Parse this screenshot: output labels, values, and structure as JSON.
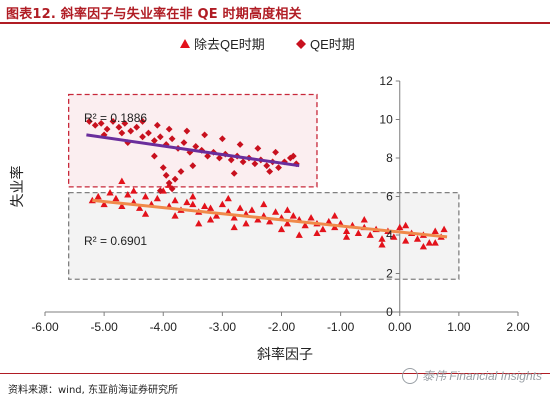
{
  "figure": {
    "title": "图表12.  斜率因子与失业率在非 QE 时期高度相关",
    "source": "资料来源：wind, 东亚前海证券研究所",
    "watermark": "泰伟 Financial Insights",
    "title_color": "#b01c24"
  },
  "chart_data": {
    "type": "scatter",
    "xlabel": "斜率因子",
    "ylabel": "失业率",
    "xlim": [
      -6,
      2
    ],
    "ylim": [
      0,
      12
    ],
    "x_ticks": [
      "-6.00",
      "-5.00",
      "-4.00",
      "-3.00",
      "-2.00",
      "-1.00",
      "0.00",
      "1.00",
      "2.00"
    ],
    "y_ticks": [
      "0",
      "2",
      "4",
      "6",
      "8",
      "10",
      "12"
    ],
    "legend_position": "top",
    "grid": false,
    "series": [
      {
        "name": "除去QE时期",
        "marker": "triangle",
        "color": "#e3121b",
        "trend": {
          "from": [
            -5.2,
            5.8
          ],
          "to": [
            0.8,
            3.9
          ],
          "color": "#f08a4b"
        },
        "annotation": "R² = 0.6901",
        "points": [
          [
            -5.2,
            5.8
          ],
          [
            -5.1,
            6.0
          ],
          [
            -5.0,
            5.6
          ],
          [
            -4.9,
            6.2
          ],
          [
            -4.8,
            5.9
          ],
          [
            -4.7,
            5.5
          ],
          [
            -4.6,
            6.1
          ],
          [
            -4.5,
            5.7
          ],
          [
            -4.4,
            5.4
          ],
          [
            -4.3,
            6.0
          ],
          [
            -4.2,
            5.6
          ],
          [
            -4.1,
            5.9
          ],
          [
            -4.0,
            6.3
          ],
          [
            -3.9,
            5.5
          ],
          [
            -3.8,
            5.8
          ],
          [
            -3.7,
            5.3
          ],
          [
            -3.6,
            5.7
          ],
          [
            -3.5,
            5.6
          ],
          [
            -3.4,
            5.2
          ],
          [
            -3.3,
            5.5
          ],
          [
            -3.2,
            5.4
          ],
          [
            -3.1,
            5.0
          ],
          [
            -3.0,
            5.6
          ],
          [
            -2.9,
            5.2
          ],
          [
            -2.8,
            4.9
          ],
          [
            -2.7,
            5.4
          ],
          [
            -2.6,
            5.1
          ],
          [
            -2.5,
            5.3
          ],
          [
            -2.4,
            4.8
          ],
          [
            -2.3,
            5.0
          ],
          [
            -2.2,
            4.7
          ],
          [
            -2.1,
            5.2
          ],
          [
            -2.0,
            4.9
          ],
          [
            -1.9,
            4.6
          ],
          [
            -1.8,
            5.0
          ],
          [
            -1.7,
            4.8
          ],
          [
            -1.6,
            4.5
          ],
          [
            -1.5,
            4.9
          ],
          [
            -1.4,
            4.6
          ],
          [
            -1.3,
            4.3
          ],
          [
            -1.2,
            4.7
          ],
          [
            -1.1,
            4.4
          ],
          [
            -1.0,
            4.6
          ],
          [
            -0.9,
            4.2
          ],
          [
            -0.8,
            4.5
          ],
          [
            -0.7,
            4.1
          ],
          [
            -0.6,
            4.4
          ],
          [
            -0.5,
            4.0
          ],
          [
            -0.4,
            4.3
          ],
          [
            -0.3,
            3.8
          ],
          [
            -0.2,
            4.2
          ],
          [
            -0.1,
            3.9
          ],
          [
            0.0,
            4.4
          ],
          [
            0.1,
            3.7
          ],
          [
            0.2,
            4.1
          ],
          [
            0.3,
            3.8
          ],
          [
            0.4,
            4.0
          ],
          [
            0.5,
            3.6
          ],
          [
            0.6,
            4.2
          ],
          [
            0.7,
            3.9
          ],
          [
            0.75,
            4.3
          ],
          [
            -4.7,
            6.8
          ],
          [
            -4.5,
            6.3
          ],
          [
            -3.9,
            6.6
          ],
          [
            -3.5,
            6.0
          ],
          [
            -2.9,
            5.9
          ],
          [
            -2.3,
            5.6
          ],
          [
            -1.9,
            5.3
          ],
          [
            -1.1,
            5.0
          ],
          [
            -0.6,
            4.8
          ],
          [
            0.1,
            4.5
          ],
          [
            -4.3,
            5.1
          ],
          [
            -3.8,
            5.0
          ],
          [
            -3.2,
            4.8
          ],
          [
            -2.6,
            4.6
          ],
          [
            -2.0,
            4.3
          ],
          [
            -1.4,
            4.1
          ],
          [
            -0.9,
            3.9
          ],
          [
            -0.3,
            3.5
          ],
          [
            0.4,
            3.4
          ],
          [
            0.6,
            3.6
          ],
          [
            -1.7,
            4.0
          ],
          [
            -2.8,
            4.4
          ],
          [
            -3.4,
            4.6
          ]
        ]
      },
      {
        "name": "QE时期",
        "marker": "diamond",
        "color": "#c8101e",
        "trend": {
          "from": [
            -5.3,
            9.2
          ],
          "to": [
            -1.7,
            7.6
          ],
          "color": "#6a2e9c"
        },
        "annotation": "R² = 0.1886",
        "points": [
          [
            -5.25,
            9.9
          ],
          [
            -5.15,
            9.7
          ],
          [
            -5.05,
            9.8
          ],
          [
            -4.95,
            9.5
          ],
          [
            -4.85,
            9.9
          ],
          [
            -4.75,
            9.6
          ],
          [
            -4.7,
            9.3
          ],
          [
            -4.65,
            9.8
          ],
          [
            -4.55,
            9.4
          ],
          [
            -4.45,
            9.6
          ],
          [
            -4.35,
            9.1
          ],
          [
            -4.25,
            9.3
          ],
          [
            -4.15,
            8.9
          ],
          [
            -4.05,
            9.1
          ],
          [
            -3.95,
            8.7
          ],
          [
            -3.85,
            9.0
          ],
          [
            -3.75,
            8.5
          ],
          [
            -3.65,
            8.8
          ],
          [
            -3.55,
            8.3
          ],
          [
            -3.45,
            8.6
          ],
          [
            -3.35,
            8.4
          ],
          [
            -3.25,
            8.1
          ],
          [
            -3.15,
            8.3
          ],
          [
            -3.05,
            8.0
          ],
          [
            -2.95,
            8.2
          ],
          [
            -2.85,
            7.9
          ],
          [
            -2.75,
            8.1
          ],
          [
            -2.65,
            7.8
          ],
          [
            -2.55,
            8.0
          ],
          [
            -2.45,
            7.7
          ],
          [
            -2.35,
            7.9
          ],
          [
            -2.25,
            7.6
          ],
          [
            -2.15,
            7.8
          ],
          [
            -2.05,
            7.5
          ],
          [
            -1.95,
            7.8
          ],
          [
            -1.85,
            8.0
          ],
          [
            -1.75,
            7.7
          ],
          [
            -4.35,
            9.9
          ],
          [
            -4.1,
            9.7
          ],
          [
            -3.9,
            9.5
          ],
          [
            -3.6,
            9.4
          ],
          [
            -3.3,
            9.2
          ],
          [
            -3.0,
            9.0
          ],
          [
            -2.7,
            8.7
          ],
          [
            -2.4,
            8.5
          ],
          [
            -2.1,
            8.3
          ],
          [
            -1.8,
            8.1
          ],
          [
            -4.0,
            7.5
          ],
          [
            -3.95,
            7.1
          ],
          [
            -3.9,
            6.7
          ],
          [
            -3.85,
            6.4
          ],
          [
            -3.8,
            6.9
          ],
          [
            -4.05,
            6.3
          ],
          [
            -3.7,
            7.3
          ],
          [
            -4.15,
            8.1
          ],
          [
            -3.5,
            7.6
          ],
          [
            -2.8,
            7.2
          ],
          [
            -2.2,
            7.3
          ],
          [
            -5.0,
            9.2
          ],
          [
            -4.6,
            8.8
          ]
        ]
      }
    ]
  },
  "boxes": [
    {
      "name": "qe-box",
      "x": [
        -5.6,
        -1.4
      ],
      "y": [
        6.5,
        11.3
      ],
      "fill": "#fbeef0",
      "stroke": "#c8283a"
    },
    {
      "name": "non-qe-box",
      "x": [
        -5.6,
        1.0
      ],
      "y": [
        1.7,
        6.2
      ],
      "fill": "#f3f3f3",
      "stroke": "#808080"
    }
  ]
}
